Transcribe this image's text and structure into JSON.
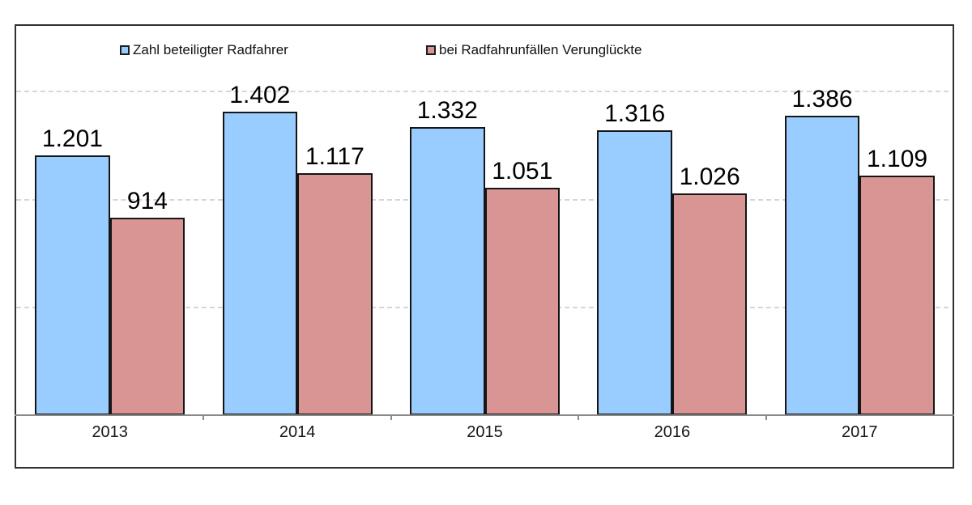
{
  "chart_data": {
    "type": "bar",
    "categories": [
      "2013",
      "2014",
      "2015",
      "2016",
      "2017"
    ],
    "series": [
      {
        "name": "Zahl beteiligter Radfahrer",
        "color": "#99CCFF",
        "values": [
          1201,
          1402,
          1332,
          1316,
          1386
        ],
        "labels": [
          "1.201",
          "1.402",
          "1.332",
          "1.316",
          "1.386"
        ]
      },
      {
        "name": "bei Radfahrunfällen Verunglückte",
        "color": "#D99494",
        "values": [
          914,
          1117,
          1051,
          1026,
          1109
        ],
        "labels": [
          "914",
          "1.117",
          "1.051",
          "1.026",
          "1.109"
        ]
      }
    ],
    "title": "",
    "xlabel": "",
    "ylabel": "",
    "ylim": [
      0,
      1600
    ],
    "gridlines": [
      500,
      1000,
      1500
    ],
    "grid_style": "dashed",
    "legend_position": "top",
    "bar_border_color": "#151515",
    "frame_color": "#303030",
    "axis_color": "#8a8a8a",
    "gridline_color": "#d6d6d6"
  }
}
